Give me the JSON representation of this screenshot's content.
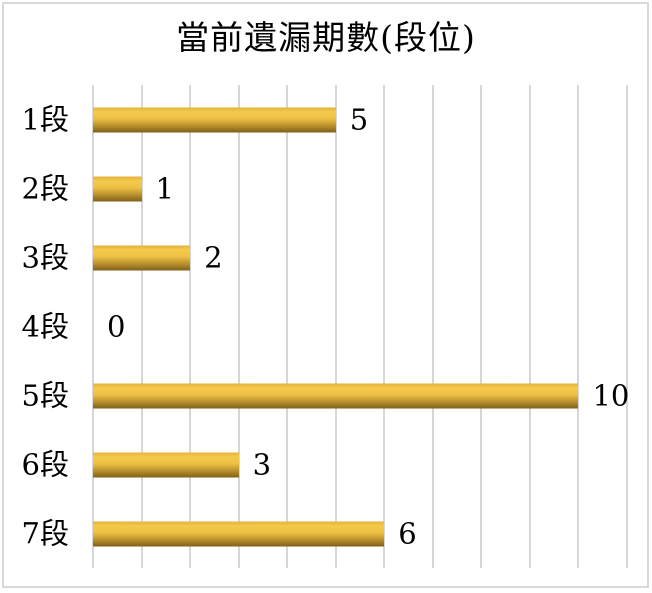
{
  "title": "當前遺漏期數(段位)",
  "chart_data": {
    "type": "bar",
    "orientation": "horizontal",
    "title": "當前遺漏期數(段位)",
    "categories": [
      "1段",
      "2段",
      "3段",
      "4段",
      "5段",
      "6段",
      "7段"
    ],
    "values": [
      5,
      1,
      2,
      0,
      10,
      3,
      6
    ],
    "xlabel": "",
    "ylabel": "",
    "xlim": [
      0,
      11
    ],
    "gridline_interval": 1,
    "grid": "vertical-only",
    "legend": "none",
    "data_labels": true,
    "colors": {
      "bar_gradient_top": "#e3b13c",
      "bar_gradient_light": "#f5cb4c",
      "bar_gradient_mid": "#ecc044",
      "bar_gradient_dark": "#b18829",
      "bar_gradient_bottom": "#7e6019",
      "gridline": "#d7d7d7",
      "chart_border": "#d9d9d9",
      "text": "#000000",
      "background": "#ffffff"
    }
  }
}
